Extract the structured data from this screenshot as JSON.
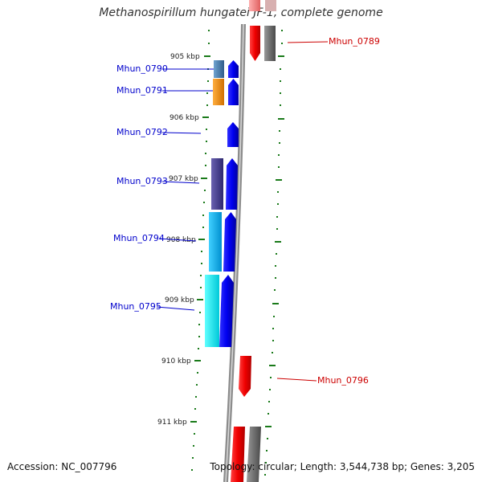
{
  "title": "Methanospirillum hungatei JF-1, complete genome",
  "footer": {
    "accession": "Accession: NC_007796",
    "topology": "Topology: circular; Length: 3,544,738 bp; Genes: 3,205"
  },
  "colors": {
    "backbone": "#8c8c8c",
    "tick": "#1a7a1a",
    "highlight_label": "#0000cc",
    "other_label": "#cc0000",
    "gene_blue": "#0a0aee",
    "gene_red": "#ee0a0a",
    "gene_gray": "#6e6e6e"
  },
  "scale_labels": [
    "905 kbp",
    "906 kbp",
    "907 kbp",
    "908 kbp",
    "909 kbp",
    "910 kbp",
    "911 kbp"
  ],
  "genes": [
    {
      "label": "Mhun_0789",
      "kind": "other"
    },
    {
      "label": "Mhun_0790",
      "kind": "highlight",
      "homolog_color": "#4682b4"
    },
    {
      "label": "Mhun_0791",
      "kind": "highlight",
      "homolog_color": "#ff8c00"
    },
    {
      "label": "Mhun_0792",
      "kind": "highlight"
    },
    {
      "label": "Mhun_0793",
      "kind": "highlight",
      "homolog_color": "#483d8b"
    },
    {
      "label": "Mhun_0794",
      "kind": "highlight",
      "homolog_color": "#00bfff"
    },
    {
      "label": "Mhun_0795",
      "kind": "highlight",
      "homolog_color": "#00ffff"
    },
    {
      "label": "Mhun_0796",
      "kind": "other"
    }
  ]
}
